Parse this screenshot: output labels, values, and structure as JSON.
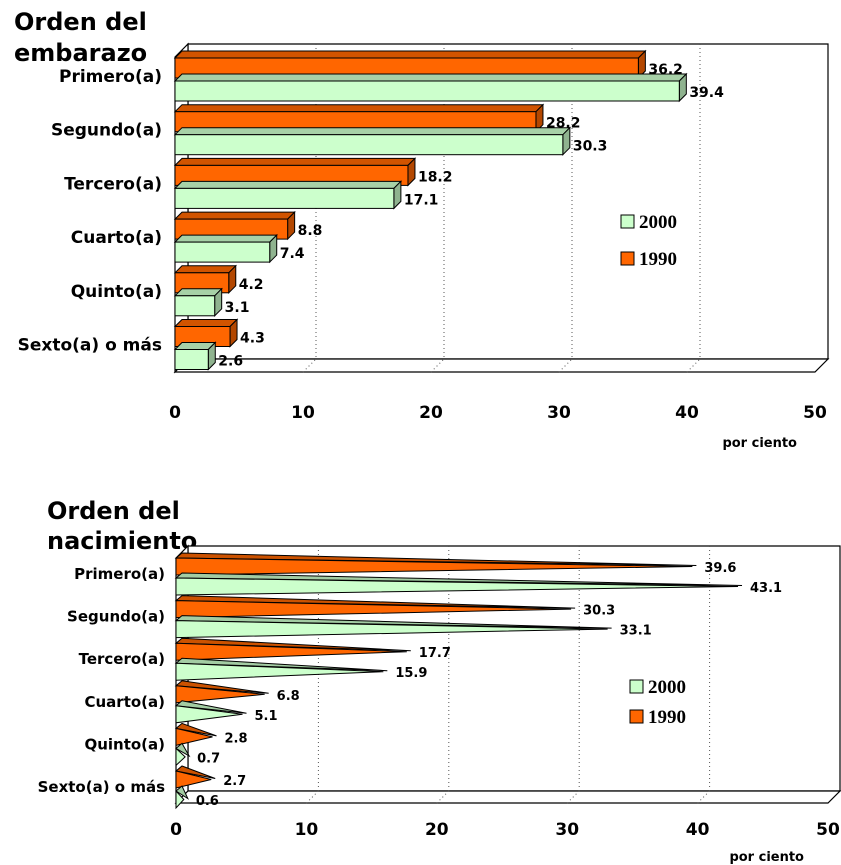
{
  "chart_data": [
    {
      "type": "bar",
      "title": "Orden del embarazo",
      "title_lines": [
        "Orden del",
        "embarazo"
      ],
      "categories": [
        "Primero(a)",
        "Segundo(a)",
        "Tercero(a)",
        "Cuarto(a)",
        "Quinto(a)",
        "Sexto(a) o más"
      ],
      "series": [
        {
          "name": "1990",
          "color": "#ff6600",
          "values": [
            36.2,
            28.2,
            18.2,
            8.8,
            4.2,
            4.3
          ]
        },
        {
          "name": "2000",
          "color": "#ccffcc",
          "values": [
            39.4,
            30.3,
            17.1,
            7.4,
            3.1,
            2.6
          ]
        }
      ],
      "legend": [
        "2000",
        "1990"
      ],
      "legend_position": "right",
      "xlim": [
        0,
        50
      ],
      "xticks": [
        "0",
        "10",
        "20",
        "30",
        "40",
        "50"
      ],
      "xlabel": "por ciento",
      "orientation": "horizontal"
    },
    {
      "type": "bar",
      "title": "Orden del nacimiento",
      "title_lines": [
        "Orden del",
        "nacimiento"
      ],
      "categories": [
        "Primero(a)",
        "Segundo(a)",
        "Tercero(a)",
        "Cuarto(a)",
        "Quinto(a)",
        "Sexto(a) o más"
      ],
      "series": [
        {
          "name": "1990",
          "color": "#ff6600",
          "values": [
            39.6,
            30.3,
            17.7,
            6.8,
            2.8,
            2.7
          ]
        },
        {
          "name": "2000",
          "color": "#ccffcc",
          "values": [
            43.1,
            33.1,
            15.9,
            5.1,
            0.7,
            0.6
          ]
        }
      ],
      "legend": [
        "2000",
        "1990"
      ],
      "legend_position": "right",
      "xlim": [
        0,
        50
      ],
      "xticks": [
        "0",
        "10",
        "20",
        "30",
        "40",
        "50"
      ],
      "xlabel": "por ciento",
      "orientation": "horizontal",
      "mark_shape": "cone"
    }
  ]
}
